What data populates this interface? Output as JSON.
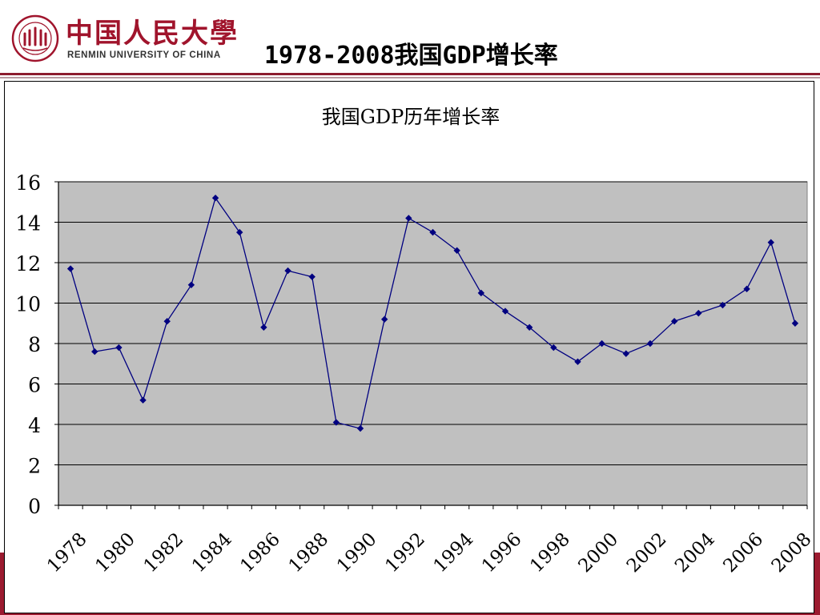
{
  "header": {
    "logo_cn": "中国人民大學",
    "logo_en": "RENMIN UNIVERSITY OF CHINA",
    "slide_title": "1978-2008我国GDP增长率"
  },
  "colors": {
    "brand_red": "#9b1b30",
    "series_color": "#000080",
    "plot_background": "#c0c0c0"
  },
  "chart_data": {
    "type": "line",
    "title": "我国GDP历年增长率",
    "xlabel": "",
    "ylabel": "",
    "ylim": [
      0,
      16
    ],
    "yticks": [
      0,
      2,
      4,
      6,
      8,
      10,
      12,
      14,
      16
    ],
    "x_tick_labels": [
      "1978",
      "1980",
      "1982",
      "1984",
      "1986",
      "1988",
      "1990",
      "1992",
      "1994",
      "1996",
      "1998",
      "2000",
      "2002",
      "2004",
      "2006",
      "2008"
    ],
    "grid": true,
    "legend": "none",
    "x": [
      1978,
      1979,
      1980,
      1981,
      1982,
      1983,
      1984,
      1985,
      1986,
      1987,
      1988,
      1989,
      1990,
      1991,
      1992,
      1993,
      1994,
      1995,
      1996,
      1997,
      1998,
      1999,
      2000,
      2001,
      2002,
      2003,
      2004,
      2005,
      2006,
      2007,
      2008
    ],
    "series": [
      {
        "values": [
          11.7,
          7.6,
          7.8,
          5.2,
          9.1,
          10.9,
          15.2,
          13.5,
          8.8,
          11.6,
          11.3,
          4.1,
          3.8,
          9.2,
          14.2,
          13.5,
          12.6,
          10.5,
          9.6,
          8.8,
          7.8,
          7.1,
          8.0,
          7.5,
          8.0,
          9.1,
          9.5,
          9.9,
          10.7,
          13.0,
          9.0
        ]
      }
    ]
  }
}
